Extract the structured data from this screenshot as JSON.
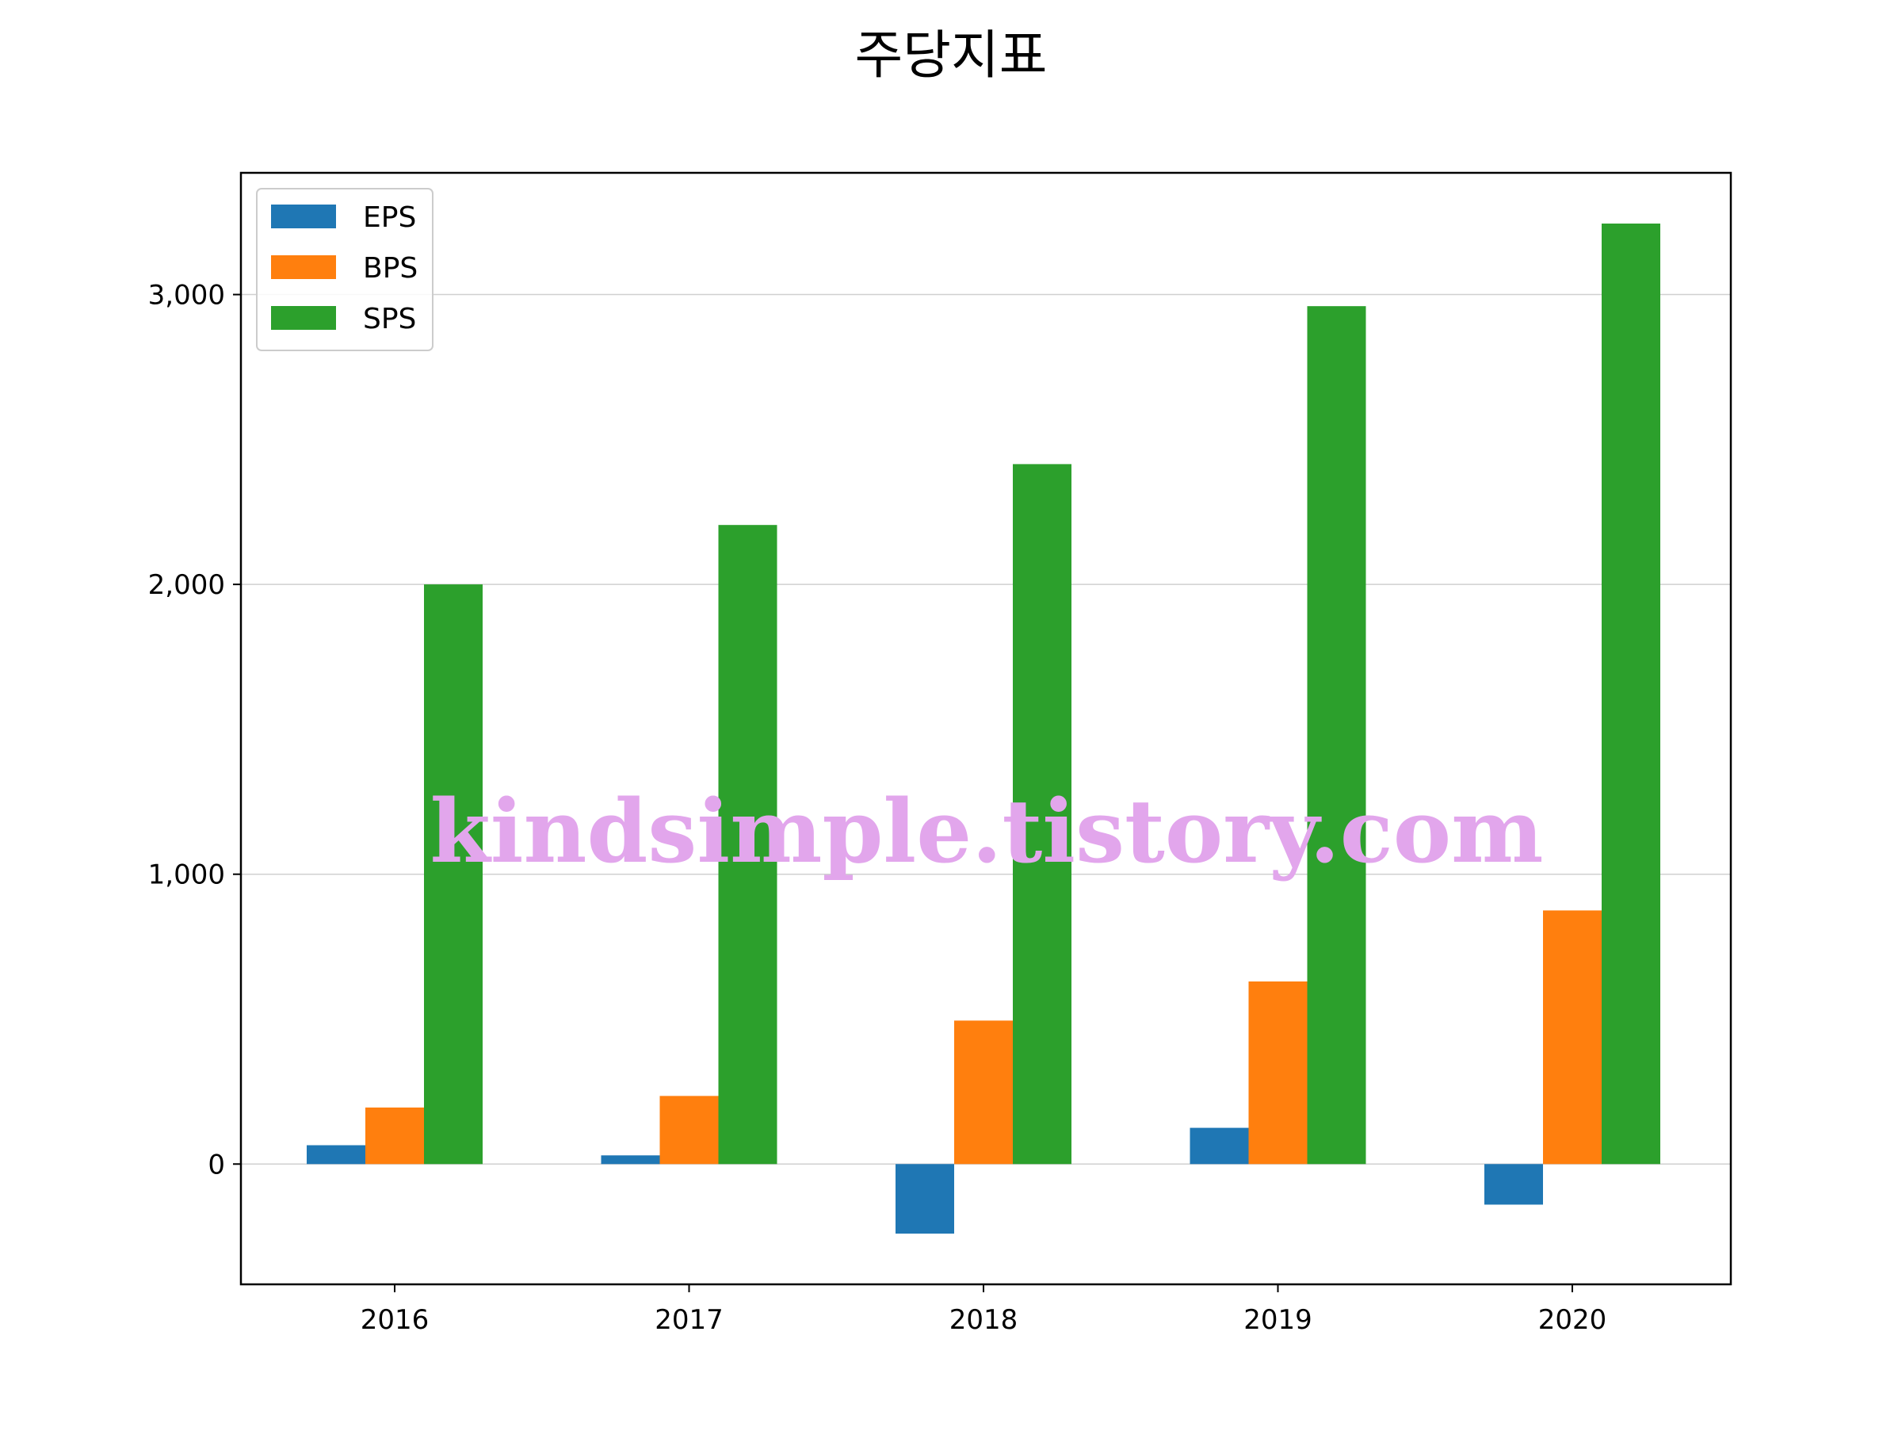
{
  "chart_data": {
    "type": "bar",
    "title": "주당지표",
    "xlabel": "",
    "ylabel": "",
    "categories": [
      "2016",
      "2017",
      "2018",
      "2019",
      "2020"
    ],
    "series": [
      {
        "name": "EPS",
        "color": "#1f77b4",
        "values": [
          65,
          30,
          -240,
          125,
          -140
        ]
      },
      {
        "name": "BPS",
        "color": "#ff7f0e",
        "values": [
          195,
          235,
          495,
          630,
          875
        ]
      },
      {
        "name": "SPS",
        "color": "#2ca02c",
        "values": [
          2000,
          2205,
          2415,
          2960,
          3245
        ]
      }
    ],
    "ylim": [
      -415,
      3420
    ],
    "yticks": [
      0,
      1000,
      2000,
      3000
    ],
    "ytick_labels": [
      "0",
      "1,000",
      "2,000",
      "3,000"
    ],
    "grid": "y",
    "legend_position": "top-left"
  },
  "watermark": "kindsimple.tistory.com"
}
